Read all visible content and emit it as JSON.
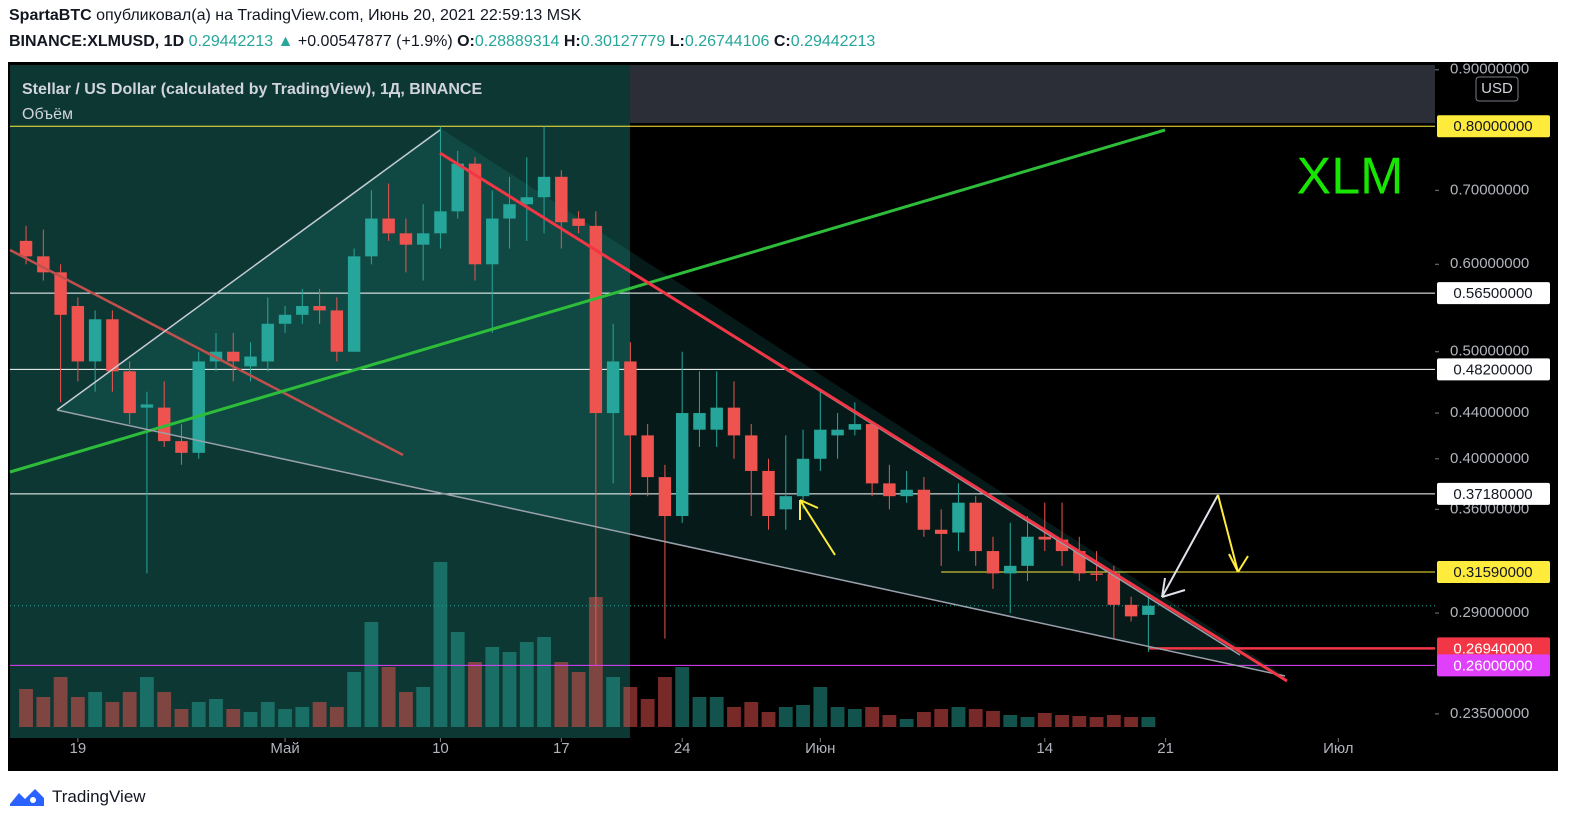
{
  "header": {
    "author": "SpartaBTC",
    "published": "опубликовал(а) на TradingView.com, Июнь 20, 2021 22:59:13 MSK",
    "symbol": "BINANCE:XLMUSD, 1D",
    "last": "0.29442213",
    "arrow": "▲",
    "change": "+0.00547877 (+1.9%)",
    "o_label": "O:",
    "o": "0.28889314",
    "h_label": "H:",
    "h": "0.30127779",
    "l_label": "L:",
    "l": "0.26744106",
    "c_label": "C:",
    "c": "0.29442213"
  },
  "footer": {
    "brand": "TradingView"
  },
  "chart_data": {
    "type": "candlestick",
    "title": "Stellar / US Dollar (calculated by TradingView), 1Д, BINANCE",
    "volume_label": "Объём",
    "annotation": "XLM",
    "currency": "USD",
    "log_scale": true,
    "grid": false,
    "up_color": "#26a69a",
    "down_color": "#ef5350",
    "ylim": [
      0.2235,
      0.909
    ],
    "yticks": [
      {
        "value": 0.9,
        "label": "0.90000000"
      },
      {
        "value": 0.7,
        "label": "0.70000000"
      },
      {
        "value": 0.6,
        "label": "0.60000000"
      },
      {
        "value": 0.5,
        "label": "0.50000000"
      },
      {
        "value": 0.44,
        "label": "0.44000000"
      },
      {
        "value": 0.4,
        "label": "0.40000000"
      },
      {
        "value": 0.36,
        "label": "0.36000000"
      },
      {
        "value": 0.29,
        "label": "0.29000000"
      },
      {
        "value": 0.235,
        "label": "0.23500000"
      }
    ],
    "xlim": [
      -0.93,
      81.6
    ],
    "xticks": [
      {
        "value": 3,
        "label": "19"
      },
      {
        "value": 15,
        "label": "Май"
      },
      {
        "value": 24,
        "label": "10"
      },
      {
        "value": 31,
        "label": "17"
      },
      {
        "value": 38,
        "label": "24"
      },
      {
        "value": 46,
        "label": "Июн"
      },
      {
        "value": 59,
        "label": "14"
      },
      {
        "value": 66,
        "label": "21"
      },
      {
        "value": 76,
        "label": "Июл"
      }
    ],
    "open": [
      0.63,
      0.61,
      0.59,
      0.55,
      0.49,
      0.535,
      0.48,
      0.445,
      0.445,
      0.415,
      0.405,
      0.49,
      0.5,
      0.485,
      0.49,
      0.53,
      0.54,
      0.55,
      0.545,
      0.5,
      0.61,
      0.66,
      0.64,
      0.625,
      0.64,
      0.67,
      0.74,
      0.6,
      0.66,
      0.68,
      0.69,
      0.72,
      0.66,
      0.65,
      0.44,
      0.49,
      0.42,
      0.385,
      0.355,
      0.425,
      0.425,
      0.445,
      0.42,
      0.39,
      0.36,
      0.37,
      0.4,
      0.42,
      0.425,
      0.43,
      0.38,
      0.37,
      0.375,
      0.345,
      0.343,
      0.365,
      0.33,
      0.315,
      0.32,
      0.34,
      0.338,
      0.33,
      0.315,
      0.315,
      0.295,
      0.28889314
    ],
    "high": [
      0.65,
      0.645,
      0.6,
      0.56,
      0.545,
      0.545,
      0.49,
      0.46,
      0.47,
      0.43,
      0.5,
      0.52,
      0.52,
      0.51,
      0.56,
      0.55,
      0.57,
      0.57,
      0.56,
      0.62,
      0.7,
      0.71,
      0.66,
      0.68,
      0.8,
      0.76,
      0.75,
      0.7,
      0.72,
      0.75,
      0.8,
      0.73,
      0.67,
      0.67,
      0.53,
      0.51,
      0.43,
      0.395,
      0.5,
      0.48,
      0.48,
      0.47,
      0.43,
      0.4,
      0.42,
      0.425,
      0.46,
      0.44,
      0.45,
      0.43,
      0.395,
      0.39,
      0.385,
      0.36,
      0.38,
      0.37,
      0.34,
      0.35,
      0.355,
      0.365,
      0.365,
      0.34,
      0.33,
      0.32,
      0.3,
      0.30127779
    ],
    "low": [
      0.6,
      0.58,
      0.45,
      0.47,
      0.46,
      0.46,
      0.43,
      0.315,
      0.41,
      0.395,
      0.4,
      0.48,
      0.47,
      0.47,
      0.48,
      0.52,
      0.53,
      0.53,
      0.49,
      0.5,
      0.6,
      0.63,
      0.59,
      0.58,
      0.62,
      0.66,
      0.58,
      0.52,
      0.62,
      0.63,
      0.64,
      0.62,
      0.64,
      0.26,
      0.38,
      0.37,
      0.37,
      0.275,
      0.35,
      0.41,
      0.41,
      0.4,
      0.355,
      0.345,
      0.345,
      0.36,
      0.39,
      0.4,
      0.42,
      0.37,
      0.36,
      0.365,
      0.34,
      0.32,
      0.33,
      0.32,
      0.305,
      0.29,
      0.31,
      0.33,
      0.32,
      0.31,
      0.31,
      0.275,
      0.285,
      0.26744106
    ],
    "close": [
      0.61,
      0.59,
      0.54,
      0.49,
      0.535,
      0.48,
      0.44,
      0.448,
      0.415,
      0.405,
      0.49,
      0.5,
      0.49,
      0.495,
      0.53,
      0.54,
      0.55,
      0.545,
      0.5,
      0.61,
      0.66,
      0.64,
      0.625,
      0.64,
      0.67,
      0.74,
      0.6,
      0.66,
      0.68,
      0.69,
      0.72,
      0.655,
      0.65,
      0.44,
      0.49,
      0.42,
      0.385,
      0.355,
      0.44,
      0.44,
      0.445,
      0.42,
      0.39,
      0.355,
      0.37,
      0.4,
      0.425,
      0.425,
      0.43,
      0.38,
      0.37,
      0.375,
      0.345,
      0.342,
      0.365,
      0.33,
      0.315,
      0.32,
      0.34,
      0.338,
      0.33,
      0.315,
      0.314,
      0.295,
      0.288,
      0.29442213
    ],
    "volume": [
      38,
      30,
      50,
      30,
      35,
      25,
      35,
      50,
      35,
      18,
      25,
      28,
      18,
      15,
      25,
      18,
      20,
      25,
      20,
      55,
      105,
      60,
      35,
      40,
      165,
      95,
      65,
      80,
      75,
      85,
      90,
      65,
      55,
      130,
      50,
      40,
      28,
      50,
      60,
      30,
      30,
      20,
      25,
      15,
      20,
      22,
      40,
      20,
      18,
      20,
      12,
      8,
      15,
      18,
      20,
      18,
      16,
      12,
      10,
      14,
      12,
      11,
      10,
      12,
      10,
      10
    ],
    "levels": [
      {
        "value": 0.8,
        "label": "0.80000000",
        "color": "#ffeb3b",
        "text_color": "#131722",
        "from": -0.93
      },
      {
        "value": 0.565,
        "label": "0.56500000",
        "color": "#ffffff",
        "text_color": "#131722",
        "from": -0.93
      },
      {
        "value": 0.482,
        "label": "0.48200000",
        "color": "#ffffff",
        "text_color": "#131722",
        "from": -0.93
      },
      {
        "value": 0.3718,
        "label": "0.37180000",
        "color": "#ffffff",
        "text_color": "#131722",
        "from": -0.93
      },
      {
        "value": 0.3159,
        "label": "0.31590000",
        "color": "#ffeb3b",
        "text_color": "#131722",
        "from": 53
      },
      {
        "value": 0.2694,
        "label": "0.26940000",
        "color": "#f23645",
        "text_color": "#ffffff",
        "from": 65
      },
      {
        "value": 0.26,
        "label": "0.26000000",
        "color": "#e040fb",
        "text_color": "#ffffff",
        "from": -0.93
      }
    ]
  }
}
